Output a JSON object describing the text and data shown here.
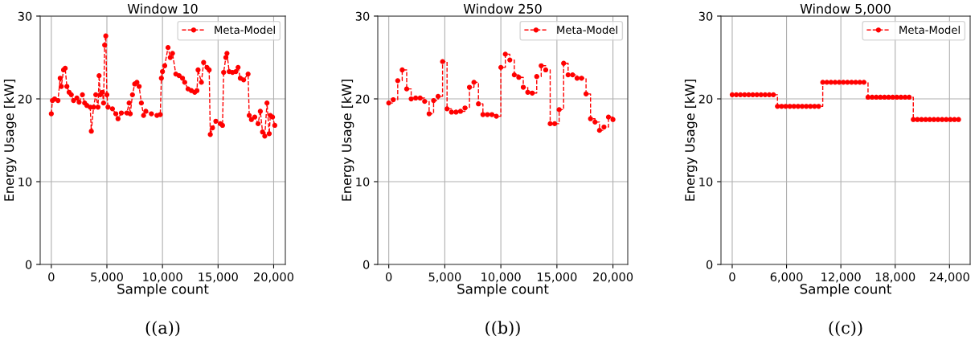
{
  "chart_data": [
    {
      "type": "line",
      "title": "Window 10",
      "xlabel": "Sample count",
      "ylabel": "Energy Usage [kW]",
      "annotations": [
        "((a))"
      ],
      "xlim": [
        -1000,
        21050
      ],
      "ylim": [
        0,
        30
      ],
      "xticks": [
        0,
        {
          "value": 5000,
          "label": "5,000"
        },
        {
          "value": 10000,
          "label": "10,000"
        },
        {
          "value": 15000,
          "label": "15,000"
        },
        {
          "value": 20000,
          "label": "20,000"
        }
      ],
      "yticks": [
        0,
        10,
        20,
        30
      ],
      "grid": true,
      "legend": "top right",
      "marker": "circle",
      "line_style": "dashed",
      "series": [
        {
          "name": "Meta-Model",
          "color": "#ff0000",
          "x": [
            0,
            100,
            300,
            600,
            800,
            900,
            1100,
            1250,
            1400,
            1600,
            1800,
            2000,
            2300,
            2500,
            2800,
            3000,
            3200,
            3500,
            3600,
            3800,
            4000,
            4200,
            4300,
            4400,
            4600,
            4700,
            4800,
            4900,
            5000,
            5100,
            5500,
            5800,
            6000,
            6300,
            6800,
            7000,
            7100,
            7300,
            7500,
            7700,
            7900,
            8100,
            8300,
            8500,
            9000,
            9500,
            9800,
            9900,
            10000,
            10200,
            10500,
            10700,
            10900,
            11200,
            11500,
            11800,
            12000,
            12300,
            12600,
            12900,
            13100,
            13200,
            13500,
            13700,
            14000,
            14200,
            14300,
            14500,
            14800,
            15200,
            15400,
            15500,
            15700,
            15800,
            16000,
            16300,
            16600,
            16800,
            17000,
            17300,
            17700,
            17800,
            18000,
            18300,
            18600,
            18800,
            19000,
            19200,
            19400,
            19600,
            19700,
            19900,
            20100
          ],
          "values": [
            18.2,
            19.8,
            20,
            19.8,
            22.5,
            21.5,
            23.5,
            23.7,
            21.5,
            20.8,
            20.5,
            19.8,
            20.1,
            19.6,
            20.5,
            19.5,
            19.2,
            19,
            16.1,
            19,
            20.5,
            19,
            22.8,
            20.5,
            20.8,
            19.5,
            26.5,
            27.6,
            20.5,
            19,
            18.8,
            18.2,
            17.6,
            18.3,
            18.3,
            19.5,
            18.2,
            20.5,
            21.8,
            22,
            21.5,
            19.5,
            18,
            18.5,
            18.2,
            18,
            18.1,
            22.5,
            23.3,
            24,
            26.2,
            25,
            25.5,
            23,
            22.8,
            22.5,
            22,
            21.2,
            21,
            20.8,
            21,
            23.5,
            22,
            24.4,
            23.8,
            23.5,
            15.7,
            16.5,
            17.3,
            17,
            16.8,
            23.2,
            25,
            25.5,
            23.3,
            23.2,
            23.3,
            23.8,
            22.5,
            22.3,
            23,
            18,
            17.5,
            17.8,
            17,
            18.5,
            16,
            15.5,
            19.5,
            15.8,
            18,
            17.8,
            16.8
          ]
        }
      ]
    },
    {
      "type": "step",
      "title": "Window 250",
      "xlabel": "Sample count",
      "ylabel": "Energy Usage [kW]",
      "annotations": [
        "((b))"
      ],
      "xlim": [
        -980,
        21320
      ],
      "ylim": [
        0,
        30
      ],
      "xticks": [
        0,
        {
          "value": 5000,
          "label": "5,000"
        },
        {
          "value": 10000,
          "label": "10,000"
        },
        {
          "value": 15000,
          "label": "15,000"
        },
        {
          "value": 20000,
          "label": "20,000"
        }
      ],
      "yticks": [
        0,
        10,
        20,
        30
      ],
      "grid": true,
      "legend": "top right",
      "marker": "circle",
      "line_style": "dashed",
      "series": [
        {
          "name": "Meta-Model",
          "color": "#ff0000",
          "x": [
            0,
            400,
            800,
            1200,
            1600,
            2000,
            2400,
            2800,
            3200,
            3600,
            4000,
            4400,
            4800,
            5200,
            5600,
            6000,
            6400,
            6800,
            7200,
            7600,
            8000,
            8400,
            8800,
            9200,
            9600,
            10000,
            10400,
            10800,
            11200,
            11600,
            12000,
            12400,
            12800,
            13200,
            13600,
            14000,
            14400,
            14800,
            15200,
            15600,
            16000,
            16400,
            16800,
            17200,
            17600,
            18000,
            18400,
            18800,
            19200,
            19600,
            20000
          ],
          "values": [
            19.5,
            19.9,
            22.2,
            23.5,
            21.2,
            20.0,
            20.1,
            20.1,
            19.7,
            18.2,
            19.8,
            20.3,
            24.5,
            18.8,
            18.4,
            18.4,
            18.5,
            18.9,
            21.4,
            22.0,
            19.4,
            18.1,
            18.1,
            18.1,
            17.9,
            23.8,
            25.4,
            24.7,
            22.9,
            22.6,
            21.4,
            20.8,
            20.7,
            22.7,
            24.0,
            23.5,
            17.0,
            17.0,
            18.7,
            24.3,
            22.9,
            22.9,
            22.5,
            22.5,
            20.6,
            17.6,
            17.2,
            16.2,
            16.6,
            17.8,
            17.5
          ]
        }
      ]
    },
    {
      "type": "step",
      "title": "Window 5,000",
      "xlabel": "Sample count",
      "ylabel": "Energy Usage [kW]",
      "annotations": [
        "((c))"
      ],
      "xlim": [
        -1240,
        26280
      ],
      "ylim": [
        0,
        30
      ],
      "xticks": [
        0,
        {
          "value": 6000,
          "label": "6,000"
        },
        {
          "value": 12000,
          "label": "12,000"
        },
        {
          "value": 18000,
          "label": "18,000"
        },
        {
          "value": 24000,
          "label": "24,000"
        }
      ],
      "yticks": [
        0,
        10,
        20,
        30
      ],
      "grid": true,
      "legend": "top right",
      "marker": "circle",
      "line_style": "dashed",
      "series": [
        {
          "name": "Meta-Model",
          "color": "#ff0000",
          "x": [
            0,
            455,
            909,
            1364,
            1818,
            2273,
            2727,
            3182,
            3636,
            4091,
            4545,
            5000,
            5455,
            5909,
            6364,
            6818,
            7273,
            7727,
            8182,
            8636,
            9091,
            9545,
            10000,
            10455,
            10909,
            11364,
            11818,
            12273,
            12727,
            13182,
            13636,
            14091,
            14545,
            15000,
            15455,
            15909,
            16364,
            16818,
            17273,
            17727,
            18182,
            18636,
            19091,
            19545,
            20000,
            20455,
            20909,
            21364,
            21818,
            22273,
            22727,
            23182,
            23636,
            24091,
            24545,
            25000
          ],
          "values": [
            20.5,
            20.5,
            20.5,
            20.5,
            20.5,
            20.5,
            20.5,
            20.5,
            20.5,
            20.5,
            20.5,
            19.1,
            19.1,
            19.1,
            19.1,
            19.1,
            19.1,
            19.1,
            19.1,
            19.1,
            19.1,
            19.1,
            22.0,
            22.0,
            22.0,
            22.0,
            22.0,
            22.0,
            22.0,
            22.0,
            22.0,
            22.0,
            22.0,
            20.2,
            20.2,
            20.2,
            20.2,
            20.2,
            20.2,
            20.2,
            20.2,
            20.2,
            20.2,
            20.2,
            17.5,
            17.5,
            17.5,
            17.5,
            17.5,
            17.5,
            17.5,
            17.5,
            17.5,
            17.5,
            17.5,
            17.5
          ]
        }
      ]
    }
  ]
}
